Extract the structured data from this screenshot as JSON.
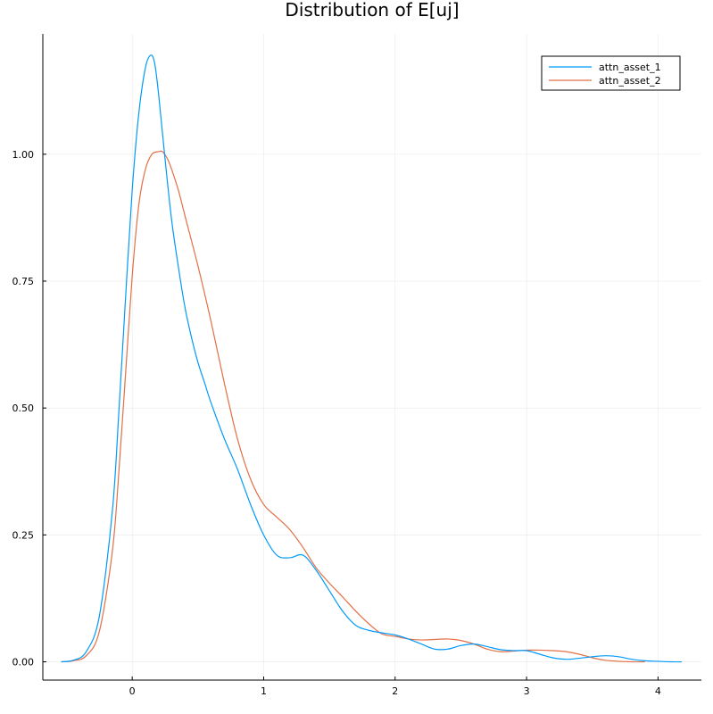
{
  "chart_data": {
    "type": "line",
    "title": "Distribution of E[uj]",
    "xlabel": "",
    "ylabel": "",
    "xlim": [
      -0.68,
      4.33
    ],
    "ylim": [
      -0.036,
      1.237
    ],
    "xticks": [
      0,
      1,
      2,
      3,
      4
    ],
    "xtick_labels": [
      "0",
      "1",
      "2",
      "3",
      "4"
    ],
    "yticks": [
      0.0,
      0.25,
      0.5,
      0.75,
      1.0
    ],
    "ytick_labels": [
      "0.00",
      "0.25",
      "0.50",
      "0.75",
      "1.00"
    ],
    "grid": true,
    "legend_position": "top-right",
    "series": [
      {
        "name": "attn_asset_1",
        "color": "#009af9",
        "x": [
          -0.54,
          -0.45,
          -0.35,
          -0.25,
          -0.15,
          -0.1,
          -0.05,
          0.0,
          0.05,
          0.1,
          0.14,
          0.17,
          0.2,
          0.25,
          0.3,
          0.35,
          0.4,
          0.45,
          0.5,
          0.55,
          0.6,
          0.7,
          0.8,
          0.9,
          1.0,
          1.1,
          1.2,
          1.3,
          1.4,
          1.5,
          1.6,
          1.7,
          1.8,
          1.9,
          2.0,
          2.1,
          2.2,
          2.3,
          2.4,
          2.5,
          2.6,
          2.7,
          2.8,
          2.9,
          3.0,
          3.1,
          3.2,
          3.3,
          3.4,
          3.5,
          3.6,
          3.7,
          3.8,
          3.9,
          4.0,
          4.1,
          4.18
        ],
        "y": [
          0.0,
          0.003,
          0.02,
          0.09,
          0.3,
          0.5,
          0.72,
          0.93,
          1.08,
          1.17,
          1.195,
          1.18,
          1.12,
          0.99,
          0.87,
          0.78,
          0.7,
          0.64,
          0.59,
          0.55,
          0.51,
          0.44,
          0.38,
          0.31,
          0.25,
          0.21,
          0.205,
          0.21,
          0.18,
          0.14,
          0.1,
          0.072,
          0.062,
          0.057,
          0.053,
          0.045,
          0.035,
          0.025,
          0.025,
          0.032,
          0.035,
          0.03,
          0.024,
          0.022,
          0.022,
          0.015,
          0.008,
          0.005,
          0.007,
          0.01,
          0.012,
          0.01,
          0.005,
          0.002,
          0.001,
          0.0,
          0.0
        ]
      },
      {
        "name": "attn_asset_2",
        "color": "#e26f46",
        "x": [
          -0.54,
          -0.45,
          -0.35,
          -0.25,
          -0.15,
          -0.1,
          -0.05,
          0.0,
          0.05,
          0.1,
          0.15,
          0.2,
          0.23,
          0.27,
          0.3,
          0.35,
          0.4,
          0.5,
          0.6,
          0.7,
          0.8,
          0.9,
          1.0,
          1.1,
          1.2,
          1.3,
          1.4,
          1.5,
          1.6,
          1.7,
          1.8,
          1.9,
          2.0,
          2.1,
          2.2,
          2.3,
          2.4,
          2.5,
          2.6,
          2.7,
          2.8,
          2.9,
          3.0,
          3.1,
          3.2,
          3.3,
          3.4,
          3.5,
          3.6,
          3.7,
          3.8,
          3.9
        ],
        "y": [
          0.0,
          0.002,
          0.012,
          0.06,
          0.22,
          0.38,
          0.57,
          0.76,
          0.9,
          0.97,
          1.0,
          1.005,
          1.005,
          0.99,
          0.97,
          0.93,
          0.88,
          0.78,
          0.67,
          0.55,
          0.44,
          0.36,
          0.31,
          0.285,
          0.26,
          0.225,
          0.185,
          0.155,
          0.128,
          0.1,
          0.075,
          0.055,
          0.05,
          0.045,
          0.043,
          0.044,
          0.045,
          0.042,
          0.035,
          0.025,
          0.02,
          0.021,
          0.023,
          0.023,
          0.022,
          0.02,
          0.015,
          0.008,
          0.003,
          0.001,
          0.0,
          0.0
        ]
      }
    ]
  }
}
